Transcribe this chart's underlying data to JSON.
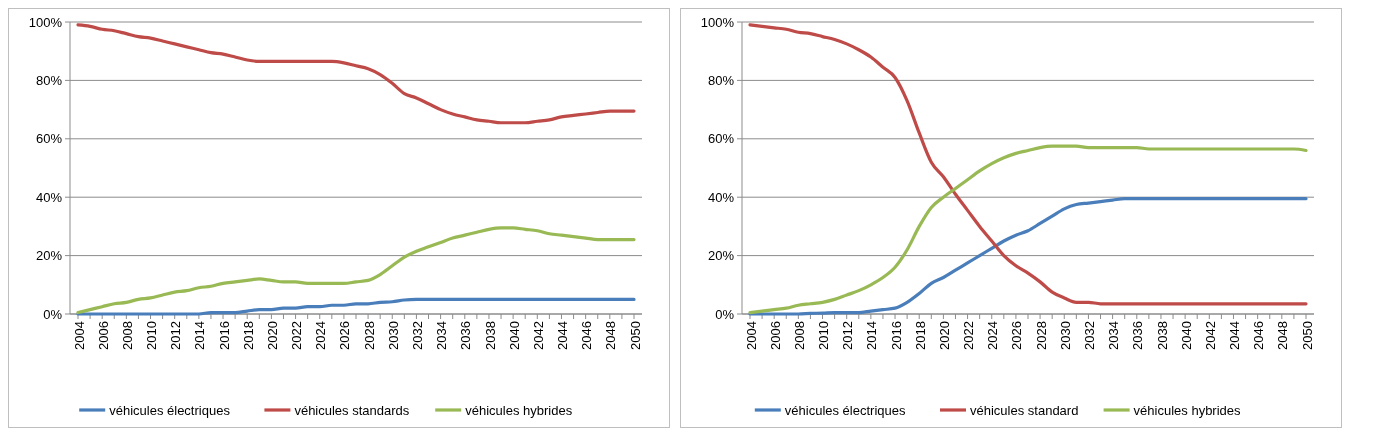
{
  "chart_data": [
    {
      "type": "line",
      "categories": [
        "2004",
        null,
        "2006",
        null,
        "2008",
        null,
        "2010",
        null,
        "2012",
        null,
        "2014",
        null,
        "2016",
        null,
        "2018",
        null,
        "2020",
        null,
        "2022",
        null,
        "2024",
        null,
        "2026",
        null,
        "2028",
        null,
        "2030",
        null,
        "2032",
        null,
        "2034",
        null,
        "2036",
        null,
        "2038",
        null,
        "2040",
        null,
        "2042",
        null,
        "2044",
        null,
        "2046",
        null,
        "2048",
        null,
        "2050"
      ],
      "ylim": [
        0,
        100
      ],
      "yticks": [
        {
          "value": 0,
          "label": "0%"
        },
        {
          "value": 20,
          "label": "20%"
        },
        {
          "value": 40,
          "label": "40%"
        },
        {
          "value": 60,
          "label": "60%"
        },
        {
          "value": 80,
          "label": "80%"
        },
        {
          "value": 100,
          "label": "100%"
        }
      ],
      "grid": "y",
      "legend": "bottom",
      "marker": "none",
      "series": [
        {
          "name": "véhicules électriques",
          "color": "#4a7ebb",
          "values": [
            0,
            0,
            0,
            0,
            0,
            0,
            0,
            0,
            0,
            0,
            0,
            0.5,
            0.5,
            0.5,
            1,
            1.5,
            1.5,
            2,
            2,
            2.5,
            2.5,
            3,
            3,
            3.5,
            3.5,
            4,
            4.2,
            4.8,
            5,
            5,
            5,
            5,
            5,
            5,
            5,
            5,
            5,
            5,
            5,
            5,
            5,
            5,
            5,
            5,
            5,
            5,
            5
          ]
        },
        {
          "name": "véhicules standards",
          "color": "#be4b48",
          "values": [
            99,
            98.5,
            97.5,
            97,
            96,
            95,
            94.5,
            93.5,
            92.5,
            91.5,
            90.5,
            89.5,
            89,
            88,
            87,
            86.5,
            86.5,
            86.5,
            86.5,
            86.5,
            86.5,
            86.5,
            86,
            85,
            84,
            82,
            79,
            75.5,
            74,
            72,
            70,
            68.5,
            67.5,
            66.5,
            66,
            65.5,
            65.5,
            65.5,
            66,
            66.5,
            67.5,
            68,
            68.5,
            69,
            69.5,
            69.5,
            69.5
          ]
        },
        {
          "name": "véhicules hybrides",
          "color": "#98b954",
          "values": [
            0.5,
            1.5,
            2.5,
            3.5,
            4,
            5,
            5.5,
            6.5,
            7.5,
            8,
            9,
            9.5,
            10.5,
            11,
            11.5,
            12,
            11.5,
            11,
            11,
            10.5,
            10.5,
            10.5,
            10.5,
            11,
            11.5,
            13.5,
            16.5,
            19.5,
            21.5,
            23,
            24.5,
            26,
            27,
            28,
            29,
            29.5,
            29.5,
            29,
            28.5,
            27.5,
            27,
            26.5,
            26,
            25.5,
            25.5,
            25.5,
            25.5
          ]
        }
      ]
    },
    {
      "type": "line",
      "categories": [
        "2004",
        null,
        "2006",
        null,
        "2008",
        null,
        "2010",
        null,
        "2012",
        null,
        "2014",
        null,
        "2016",
        null,
        "2018",
        null,
        "2020",
        null,
        "2022",
        null,
        "2024",
        null,
        "2026",
        null,
        "2028",
        null,
        "2030",
        null,
        "2032",
        null,
        "2034",
        null,
        "2036",
        null,
        "2038",
        null,
        "2040",
        null,
        "2042",
        null,
        "2044",
        null,
        "2046",
        null,
        "2048",
        null,
        "2050"
      ],
      "ylim": [
        0,
        100
      ],
      "yticks": [
        {
          "value": 0,
          "label": "0%"
        },
        {
          "value": 20,
          "label": "20%"
        },
        {
          "value": 40,
          "label": "40%"
        },
        {
          "value": 60,
          "label": "60%"
        },
        {
          "value": 80,
          "label": "80%"
        },
        {
          "value": 100,
          "label": "100%"
        }
      ],
      "grid": "y",
      "legend": "bottom",
      "marker": "none",
      "series": [
        {
          "name": "véhicules électriques",
          "color": "#4a7ebb",
          "values": [
            0,
            0,
            0,
            0,
            0,
            0.2,
            0.3,
            0.5,
            0.5,
            0.5,
            1,
            1.5,
            2,
            4,
            7,
            10.5,
            12.5,
            15,
            17.5,
            20,
            22.5,
            25,
            27,
            28.5,
            31,
            33.5,
            36,
            37.5,
            38,
            38.5,
            39,
            39.5,
            39.5,
            39.5,
            39.5,
            39.5,
            39.5,
            39.5,
            39.5,
            39.5,
            39.5,
            39.5,
            39.5,
            39.5,
            39.5,
            39.5,
            39.5
          ]
        },
        {
          "name": "véhicules standard",
          "color": "#be4b48",
          "values": [
            99,
            98.5,
            98,
            97.5,
            96.5,
            96,
            95,
            94,
            92.5,
            90.5,
            88,
            84.5,
            81,
            73,
            62,
            52,
            47,
            41,
            35.5,
            30,
            25,
            20,
            16.5,
            14,
            11,
            7.5,
            5.5,
            4,
            4,
            3.5,
            3.5,
            3.5,
            3.5,
            3.5,
            3.5,
            3.5,
            3.5,
            3.5,
            3.5,
            3.5,
            3.5,
            3.5,
            3.5,
            3.5,
            3.5,
            3.5,
            3.5
          ]
        },
        {
          "name": "véhicules hybrides",
          "color": "#98b954",
          "values": [
            0.5,
            1,
            1.5,
            2,
            3,
            3.5,
            4,
            5,
            6.5,
            8,
            10,
            12.5,
            16,
            22,
            30,
            36.5,
            40,
            43,
            46,
            49,
            51.5,
            53.5,
            55,
            56,
            57,
            57.5,
            57.5,
            57.5,
            57,
            57,
            57,
            57,
            57,
            56.5,
            56.5,
            56.5,
            56.5,
            56.5,
            56.5,
            56.5,
            56.5,
            56.5,
            56.5,
            56.5,
            56.5,
            56.5,
            56
          ]
        }
      ]
    }
  ]
}
